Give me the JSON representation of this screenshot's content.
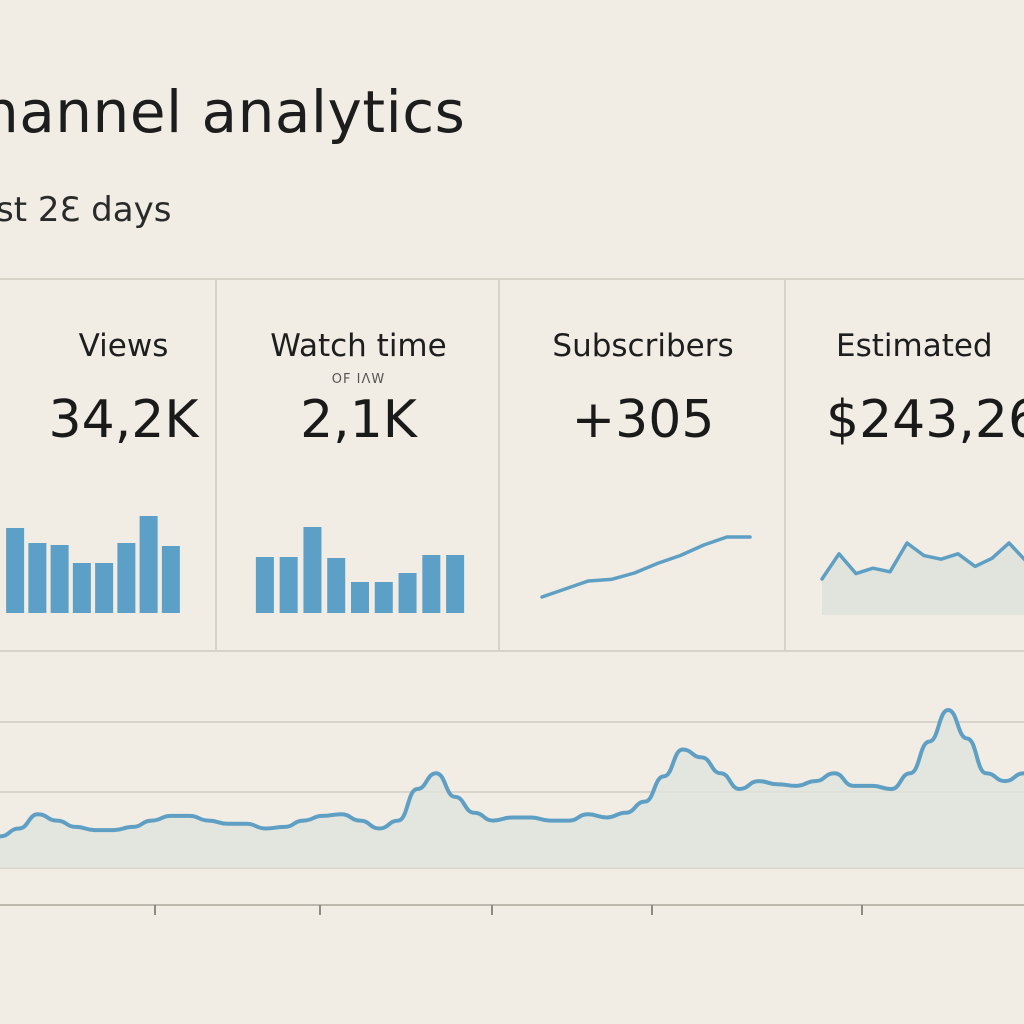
{
  "header": {
    "title": "hannel analytics",
    "subtitle": "st 2Ɛ days"
  },
  "cards": [
    {
      "label": "Views",
      "sub": "",
      "value": "34,2K",
      "spark_type": "bar",
      "spark_values": [
        85,
        70,
        68,
        50,
        50,
        70,
        97,
        67
      ]
    },
    {
      "label": "Watch time",
      "sub": "OF IΛW",
      "value": "2,1K",
      "spark_type": "bar",
      "spark_values": [
        56,
        56,
        86,
        55,
        31,
        31,
        40,
        58,
        58
      ]
    },
    {
      "label": "Subscribers",
      "sub": "",
      "value": "+305",
      "spark_type": "line",
      "spark_values": [
        10,
        20,
        30,
        32,
        40,
        52,
        62,
        75,
        85,
        85
      ]
    },
    {
      "label": "Estimated",
      "sub": "",
      "value": "$243,26",
      "spark_type": "area",
      "spark_values": [
        40,
        68,
        46,
        52,
        48,
        80,
        66,
        62,
        68,
        54,
        63,
        80,
        60
      ]
    }
  ],
  "chart_data": {
    "type": "area",
    "title": "",
    "xlabel": "",
    "ylabel": "",
    "series": [
      {
        "values": [
          20,
          25,
          34,
          30,
          26,
          24,
          24,
          26,
          30,
          33,
          33,
          30,
          28,
          28,
          25,
          26,
          30,
          33,
          34,
          30,
          25,
          30,
          50,
          60,
          45,
          35,
          30,
          32,
          32,
          30,
          30,
          34,
          32,
          35,
          42,
          58,
          75,
          70,
          60,
          50,
          55,
          53,
          52,
          55,
          60,
          52,
          52,
          50,
          60,
          80,
          100,
          82,
          60,
          55,
          60
        ]
      }
    ],
    "ylim": [
      0,
      100
    ],
    "grid": true,
    "colors": {
      "line": "#5f9fc4",
      "fill": "#e0e4dc",
      "bar": "#5c9fc7"
    }
  }
}
